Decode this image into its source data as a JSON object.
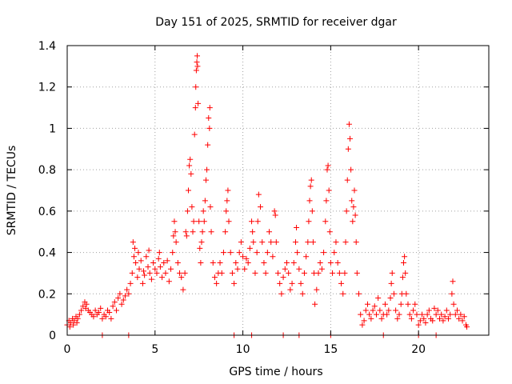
{
  "chart_data": {
    "type": "scatter",
    "title": "Day 151 of 2025, SRMTID for receiver dgar",
    "xlabel": "GPS time / hours",
    "ylabel": "SRMTID / TECUs",
    "xlim": [
      0,
      24
    ],
    "ylim": [
      0,
      1.4
    ],
    "xticks": [
      0,
      5,
      10,
      15,
      20
    ],
    "xtick_labels": [
      "0",
      "5",
      "10",
      "15",
      "20"
    ],
    "yticks": [
      0,
      0.2,
      0.4,
      0.6,
      0.8,
      1.0,
      1.2,
      1.4
    ],
    "ytick_labels": [
      "0",
      "0.2",
      "0.4",
      "0.6",
      "0.8",
      "1",
      "1.2",
      "1.4"
    ],
    "grid": true,
    "marker": "+",
    "color": "#ff0000",
    "series": [
      {
        "name": "SRMTID",
        "points": [
          [
            0.0,
            0.05
          ],
          [
            0.1,
            0.07
          ],
          [
            0.15,
            0.04
          ],
          [
            0.2,
            0.06
          ],
          [
            0.3,
            0.08
          ],
          [
            0.35,
            0.05
          ],
          [
            0.4,
            0.07
          ],
          [
            0.5,
            0.09
          ],
          [
            0.55,
            0.06
          ],
          [
            0.6,
            0.08
          ],
          [
            0.7,
            0.1
          ],
          [
            0.8,
            0.12
          ],
          [
            0.9,
            0.14
          ],
          [
            1.0,
            0.16
          ],
          [
            1.05,
            0.13
          ],
          [
            1.1,
            0.15
          ],
          [
            1.2,
            0.12
          ],
          [
            1.3,
            0.11
          ],
          [
            1.4,
            0.1
          ],
          [
            1.5,
            0.09
          ],
          [
            1.6,
            0.12
          ],
          [
            1.7,
            0.1
          ],
          [
            1.8,
            0.11
          ],
          [
            1.9,
            0.13
          ],
          [
            2.0,
            0.08
          ],
          [
            2.1,
            0.1
          ],
          [
            2.2,
            0.09
          ],
          [
            2.3,
            0.12
          ],
          [
            2.4,
            0.11
          ],
          [
            2.5,
            0.08
          ],
          [
            2.6,
            0.14
          ],
          [
            2.7,
            0.16
          ],
          [
            2.8,
            0.12
          ],
          [
            2.9,
            0.18
          ],
          [
            3.0,
            0.2
          ],
          [
            3.1,
            0.15
          ],
          [
            3.2,
            0.17
          ],
          [
            3.3,
            0.19
          ],
          [
            3.4,
            0.22
          ],
          [
            3.5,
            0.2
          ],
          [
            3.6,
            0.25
          ],
          [
            3.7,
            0.3
          ],
          [
            3.75,
            0.45
          ],
          [
            3.8,
            0.38
          ],
          [
            3.85,
            0.42
          ],
          [
            3.9,
            0.35
          ],
          [
            4.0,
            0.28
          ],
          [
            4.05,
            0.4
          ],
          [
            4.1,
            0.32
          ],
          [
            4.2,
            0.36
          ],
          [
            4.3,
            0.25
          ],
          [
            4.35,
            0.31
          ],
          [
            4.4,
            0.29
          ],
          [
            4.5,
            0.38
          ],
          [
            4.6,
            0.33
          ],
          [
            4.65,
            0.41
          ],
          [
            4.7,
            0.3
          ],
          [
            4.8,
            0.27
          ],
          [
            4.9,
            0.35
          ],
          [
            5.0,
            0.32
          ],
          [
            5.1,
            0.3
          ],
          [
            5.2,
            0.37
          ],
          [
            5.25,
            0.4
          ],
          [
            5.3,
            0.33
          ],
          [
            5.4,
            0.28
          ],
          [
            5.5,
            0.35
          ],
          [
            5.6,
            0.3
          ],
          [
            5.7,
            0.36
          ],
          [
            5.8,
            0.26
          ],
          [
            5.9,
            0.32
          ],
          [
            6.0,
            0.4
          ],
          [
            6.05,
            0.48
          ],
          [
            6.1,
            0.55
          ],
          [
            6.15,
            0.5
          ],
          [
            6.2,
            0.45
          ],
          [
            6.3,
            0.35
          ],
          [
            6.4,
            0.3
          ],
          [
            6.5,
            0.28
          ],
          [
            6.6,
            0.22
          ],
          [
            6.7,
            0.3
          ],
          [
            6.75,
            0.5
          ],
          [
            6.8,
            0.48
          ],
          [
            6.85,
            0.6
          ],
          [
            6.9,
            0.7
          ],
          [
            6.95,
            0.82
          ],
          [
            7.0,
            0.85
          ],
          [
            7.05,
            0.78
          ],
          [
            7.1,
            0.62
          ],
          [
            7.15,
            0.5
          ],
          [
            7.2,
            0.55
          ],
          [
            7.25,
            0.97
          ],
          [
            7.3,
            1.1
          ],
          [
            7.32,
            1.2
          ],
          [
            7.35,
            1.28
          ],
          [
            7.38,
            1.32
          ],
          [
            7.4,
            1.35
          ],
          [
            7.42,
            1.3
          ],
          [
            7.45,
            1.12
          ],
          [
            7.5,
            0.55
          ],
          [
            7.55,
            0.42
          ],
          [
            7.6,
            0.35
          ],
          [
            7.65,
            0.45
          ],
          [
            7.7,
            0.5
          ],
          [
            7.75,
            0.6
          ],
          [
            7.8,
            0.55
          ],
          [
            7.85,
            0.65
          ],
          [
            7.9,
            0.75
          ],
          [
            7.95,
            0.8
          ],
          [
            8.0,
            0.92
          ],
          [
            8.05,
            1.05
          ],
          [
            8.1,
            1.0
          ],
          [
            8.12,
            1.1
          ],
          [
            8.15,
            0.62
          ],
          [
            8.2,
            0.5
          ],
          [
            8.3,
            0.35
          ],
          [
            8.4,
            0.28
          ],
          [
            8.5,
            0.25
          ],
          [
            8.6,
            0.3
          ],
          [
            8.7,
            0.35
          ],
          [
            8.8,
            0.3
          ],
          [
            8.9,
            0.4
          ],
          [
            9.0,
            0.5
          ],
          [
            9.05,
            0.6
          ],
          [
            9.1,
            0.65
          ],
          [
            9.15,
            0.7
          ],
          [
            9.2,
            0.55
          ],
          [
            9.3,
            0.4
          ],
          [
            9.4,
            0.3
          ],
          [
            9.5,
            0.25
          ],
          [
            9.6,
            0.35
          ],
          [
            9.7,
            0.32
          ],
          [
            9.8,
            0.4
          ],
          [
            9.9,
            0.45
          ],
          [
            10.0,
            0.38
          ],
          [
            10.1,
            0.32
          ],
          [
            10.2,
            0.37
          ],
          [
            10.3,
            0.35
          ],
          [
            10.4,
            0.42
          ],
          [
            10.5,
            0.55
          ],
          [
            10.55,
            0.5
          ],
          [
            10.6,
            0.45
          ],
          [
            10.7,
            0.3
          ],
          [
            10.8,
            0.4
          ],
          [
            10.85,
            0.55
          ],
          [
            10.9,
            0.68
          ],
          [
            11.0,
            0.62
          ],
          [
            11.1,
            0.45
          ],
          [
            11.2,
            0.35
          ],
          [
            11.3,
            0.3
          ],
          [
            11.4,
            0.4
          ],
          [
            11.5,
            0.5
          ],
          [
            11.6,
            0.45
          ],
          [
            11.7,
            0.38
          ],
          [
            11.8,
            0.6
          ],
          [
            11.85,
            0.58
          ],
          [
            11.9,
            0.45
          ],
          [
            12.0,
            0.3
          ],
          [
            12.1,
            0.25
          ],
          [
            12.2,
            0.2
          ],
          [
            12.3,
            0.28
          ],
          [
            12.4,
            0.32
          ],
          [
            12.5,
            0.35
          ],
          [
            12.6,
            0.3
          ],
          [
            12.7,
            0.22
          ],
          [
            12.8,
            0.25
          ],
          [
            12.9,
            0.35
          ],
          [
            13.0,
            0.45
          ],
          [
            13.05,
            0.52
          ],
          [
            13.1,
            0.4
          ],
          [
            13.2,
            0.32
          ],
          [
            13.3,
            0.25
          ],
          [
            13.4,
            0.2
          ],
          [
            13.5,
            0.3
          ],
          [
            13.6,
            0.38
          ],
          [
            13.7,
            0.45
          ],
          [
            13.75,
            0.55
          ],
          [
            13.8,
            0.65
          ],
          [
            13.85,
            0.72
          ],
          [
            13.9,
            0.75
          ],
          [
            13.95,
            0.6
          ],
          [
            14.0,
            0.45
          ],
          [
            14.05,
            0.3
          ],
          [
            14.1,
            0.15
          ],
          [
            14.2,
            0.22
          ],
          [
            14.3,
            0.3
          ],
          [
            14.4,
            0.35
          ],
          [
            14.5,
            0.32
          ],
          [
            14.6,
            0.4
          ],
          [
            14.7,
            0.55
          ],
          [
            14.75,
            0.65
          ],
          [
            14.8,
            0.8
          ],
          [
            14.85,
            0.82
          ],
          [
            14.9,
            0.7
          ],
          [
            14.95,
            0.5
          ],
          [
            15.0,
            0.35
          ],
          [
            15.1,
            0.3
          ],
          [
            15.2,
            0.4
          ],
          [
            15.3,
            0.45
          ],
          [
            15.4,
            0.35
          ],
          [
            15.5,
            0.3
          ],
          [
            15.6,
            0.25
          ],
          [
            15.7,
            0.2
          ],
          [
            15.8,
            0.3
          ],
          [
            15.85,
            0.45
          ],
          [
            15.9,
            0.6
          ],
          [
            15.95,
            0.75
          ],
          [
            16.0,
            0.9
          ],
          [
            16.05,
            1.02
          ],
          [
            16.1,
            0.95
          ],
          [
            16.15,
            0.8
          ],
          [
            16.2,
            0.65
          ],
          [
            16.25,
            0.55
          ],
          [
            16.3,
            0.62
          ],
          [
            16.35,
            0.7
          ],
          [
            16.4,
            0.58
          ],
          [
            16.45,
            0.45
          ],
          [
            16.5,
            0.3
          ],
          [
            16.6,
            0.2
          ],
          [
            16.7,
            0.1
          ],
          [
            16.8,
            0.05
          ],
          [
            16.9,
            0.07
          ],
          [
            17.0,
            0.12
          ],
          [
            17.1,
            0.15
          ],
          [
            17.2,
            0.1
          ],
          [
            17.3,
            0.08
          ],
          [
            17.4,
            0.12
          ],
          [
            17.5,
            0.14
          ],
          [
            17.6,
            0.1
          ],
          [
            17.7,
            0.18
          ],
          [
            17.8,
            0.12
          ],
          [
            17.9,
            0.08
          ],
          [
            18.0,
            0.1
          ],
          [
            18.1,
            0.15
          ],
          [
            18.2,
            0.1
          ],
          [
            18.3,
            0.12
          ],
          [
            18.4,
            0.18
          ],
          [
            18.45,
            0.25
          ],
          [
            18.5,
            0.3
          ],
          [
            18.6,
            0.2
          ],
          [
            18.7,
            0.12
          ],
          [
            18.8,
            0.08
          ],
          [
            18.9,
            0.1
          ],
          [
            19.0,
            0.15
          ],
          [
            19.05,
            0.2
          ],
          [
            19.1,
            0.28
          ],
          [
            19.15,
            0.35
          ],
          [
            19.2,
            0.38
          ],
          [
            19.25,
            0.3
          ],
          [
            19.3,
            0.2
          ],
          [
            19.4,
            0.15
          ],
          [
            19.5,
            0.1
          ],
          [
            19.6,
            0.08
          ],
          [
            19.7,
            0.12
          ],
          [
            19.8,
            0.15
          ],
          [
            19.9,
            0.1
          ],
          [
            20.0,
            0.05
          ],
          [
            20.1,
            0.07
          ],
          [
            20.2,
            0.1
          ],
          [
            20.3,
            0.08
          ],
          [
            20.4,
            0.06
          ],
          [
            20.5,
            0.1
          ],
          [
            20.6,
            0.12
          ],
          [
            20.7,
            0.08
          ],
          [
            20.8,
            0.07
          ],
          [
            20.9,
            0.13
          ],
          [
            21.0,
            0.1
          ],
          [
            21.1,
            0.12
          ],
          [
            21.2,
            0.08
          ],
          [
            21.3,
            0.1
          ],
          [
            21.4,
            0.07
          ],
          [
            21.5,
            0.09
          ],
          [
            21.6,
            0.12
          ],
          [
            21.7,
            0.08
          ],
          [
            21.8,
            0.1
          ],
          [
            21.9,
            0.2
          ],
          [
            21.95,
            0.26
          ],
          [
            22.0,
            0.15
          ],
          [
            22.1,
            0.1
          ],
          [
            22.2,
            0.12
          ],
          [
            22.3,
            0.08
          ],
          [
            22.4,
            0.1
          ],
          [
            22.5,
            0.07
          ],
          [
            22.6,
            0.09
          ],
          [
            22.7,
            0.05
          ],
          [
            22.75,
            0.04
          ],
          [
            2.0,
            0.0
          ],
          [
            3.5,
            0.0
          ],
          [
            9.5,
            0.0
          ],
          [
            10.5,
            0.0
          ],
          [
            12.3,
            0.0
          ],
          [
            13.2,
            0.0
          ],
          [
            15.0,
            0.0
          ],
          [
            18.0,
            0.0
          ],
          [
            20.0,
            0.0
          ],
          [
            21.0,
            0.0
          ]
        ]
      }
    ]
  }
}
